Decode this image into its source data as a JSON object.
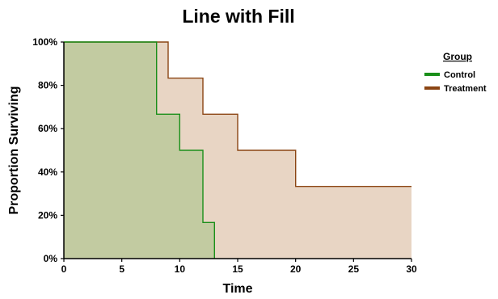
{
  "chart_data": {
    "type": "line",
    "title": "Line with Fill",
    "xlabel": "Time",
    "ylabel": "Proportion Surviving",
    "xlim": [
      0,
      30
    ],
    "ylim": [
      0,
      1
    ],
    "x_ticks": [
      "0",
      "5",
      "10",
      "15",
      "20",
      "25",
      "30"
    ],
    "x_tick_values": [
      0,
      5,
      10,
      15,
      20,
      25,
      30
    ],
    "y_ticks": [
      "0%",
      "20%",
      "40%",
      "60%",
      "80%",
      "100%"
    ],
    "y_tick_values": [
      0,
      0.2,
      0.4,
      0.6,
      0.8,
      1.0
    ],
    "step": true,
    "fill": true,
    "grid": false,
    "legend": {
      "title": "Group",
      "placement": "right"
    },
    "series": [
      {
        "name": "Treatment",
        "color": "#8B4513",
        "fill_color": "#E8D5C4",
        "x": [
          0,
          9,
          12,
          15,
          20,
          30
        ],
        "y": [
          1.0,
          0.8333,
          0.6667,
          0.5,
          0.3333,
          0.3333
        ]
      },
      {
        "name": "Control",
        "color": "#1a8f1a",
        "fill_color": "#C2CBA1",
        "x": [
          0,
          8,
          10,
          12,
          13
        ],
        "y": [
          1.0,
          0.6667,
          0.5,
          0.1667,
          0.0
        ]
      }
    ]
  }
}
